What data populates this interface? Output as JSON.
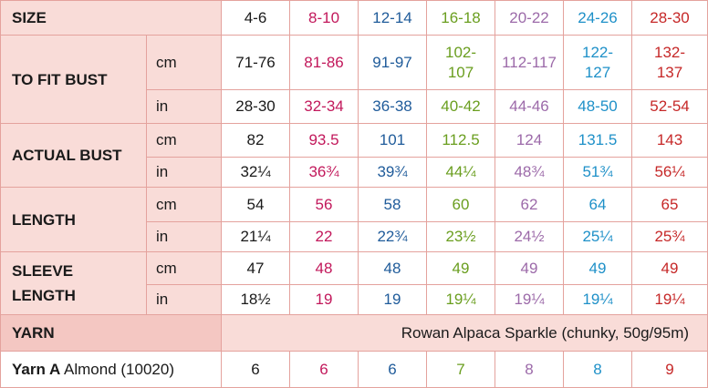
{
  "header": {
    "size_label": "SIZE"
  },
  "sizes": [
    {
      "label": "4-6",
      "color": "#1a1a1a"
    },
    {
      "label": "8-10",
      "color": "#c2185b"
    },
    {
      "label": "12-14",
      "color": "#1f5b9a"
    },
    {
      "label": "16-18",
      "color": "#6a9e1f"
    },
    {
      "label": "20-22",
      "color": "#9c6aa9"
    },
    {
      "label": "24-26",
      "color": "#1e90c8"
    },
    {
      "label": "28-30",
      "color": "#c62828"
    }
  ],
  "measurements": [
    {
      "label": "TO FIT BUST",
      "rows": [
        {
          "unit": "cm",
          "values": [
            "71-76",
            "81-86",
            "91-97",
            "102-107",
            "112-117",
            "122-127",
            "132-137"
          ]
        },
        {
          "unit": "in",
          "values": [
            "28-30",
            "32-34",
            "36-38",
            "40-42",
            "44-46",
            "48-50",
            "52-54"
          ]
        }
      ]
    },
    {
      "label": "ACTUAL BUST",
      "rows": [
        {
          "unit": "cm",
          "values": [
            "82",
            "93.5",
            "101",
            "112.5",
            "124",
            "131.5",
            "143"
          ]
        },
        {
          "unit": "in",
          "values": [
            "32¼",
            "36¾",
            "39¾",
            "44¼",
            "48¾",
            "51¾",
            "56¼"
          ]
        }
      ]
    },
    {
      "label": "LENGTH",
      "rows": [
        {
          "unit": "cm",
          "values": [
            "54",
            "56",
            "58",
            "60",
            "62",
            "64",
            "65"
          ]
        },
        {
          "unit": "in",
          "values": [
            "21¼",
            "22",
            "22¾",
            "23½",
            "24½",
            "25¼",
            "25¾"
          ]
        }
      ]
    },
    {
      "label": "SLEEVE LENGTH",
      "rows": [
        {
          "unit": "cm",
          "values": [
            "47",
            "48",
            "48",
            "49",
            "49",
            "49",
            "49"
          ]
        },
        {
          "unit": "in",
          "values": [
            "18½",
            "19",
            "19",
            "19¼",
            "19¼",
            "19¼",
            "19¼"
          ]
        }
      ]
    }
  ],
  "yarn": {
    "label": "YARN",
    "description": "Rowan Alpaca Sparkle (chunky, 50g/95m)",
    "yarn_a": {
      "name": "Yarn A",
      "shade": "Almond (10020)",
      "values": [
        "6",
        "6",
        "6",
        "7",
        "8",
        "8",
        "9"
      ]
    }
  }
}
